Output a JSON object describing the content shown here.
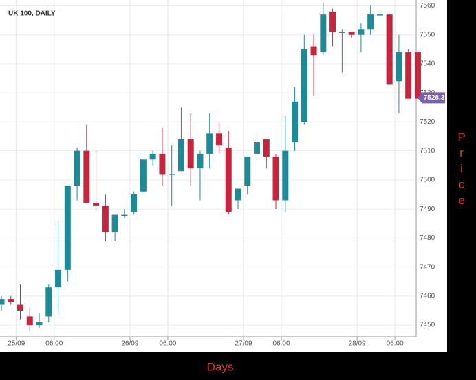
{
  "chart_data": {
    "type": "candlestick",
    "title": "UK 100, DAILY",
    "x_label": "Days",
    "y_label": "Price",
    "categories": [
      null,
      "25/09",
      null,
      null,
      null,
      "06:00",
      null,
      null,
      null,
      null,
      null,
      null,
      null,
      "26/09",
      null,
      null,
      null,
      "06:00",
      null,
      null,
      null,
      null,
      null,
      null,
      null,
      "27/09",
      null,
      null,
      null,
      "06:00",
      null,
      null,
      null,
      null,
      null,
      null,
      null,
      "28/09",
      null,
      null,
      null,
      "06:00",
      null,
      null,
      null
    ],
    "open": [
      7457,
      7459,
      7457,
      7453,
      7450,
      7453,
      7463,
      7469,
      7498,
      7510,
      7492,
      7491,
      7482,
      7488,
      7489,
      7496,
      7507,
      7509,
      7502,
      7503,
      7514,
      7504,
      7509,
      7516,
      7511,
      7493,
      7498,
      7509,
      7514,
      7508,
      7493,
      7513,
      7520,
      7546,
      7544,
      7558,
      7551,
      7551,
      7550,
      7552,
      7557,
      7557,
      7534,
      7544,
      7544
    ],
    "high": [
      7460,
      7460,
      7464,
      7456,
      7454,
      7464,
      7486,
      7498,
      7511,
      7519,
      7510,
      7495,
      7488,
      7490,
      7496,
      7507,
      7510,
      7518,
      7512,
      7525,
      7523,
      7510,
      7523,
      7520,
      7517,
      7497,
      7508,
      7516,
      7514,
      7509,
      7522,
      7532,
      7550,
      7550,
      7561,
      7559,
      7552,
      7551,
      7554,
      7560,
      7558,
      7557,
      7550,
      7545,
      7545
    ],
    "low": [
      7455,
      7457,
      7452,
      7448,
      7449,
      7451,
      7454,
      7465,
      7493,
      7492,
      7489,
      7479,
      7479,
      7487,
      7488,
      7496,
      7505,
      7498,
      7491,
      7503,
      7498,
      7493,
      7504,
      7509,
      7488,
      7490,
      7495,
      7506,
      7504,
      7490,
      7489,
      7510,
      7519,
      7529,
      7543,
      7546,
      7537,
      7549,
      7544,
      7550,
      7557,
      7533,
      7523,
      7528,
      7528
    ],
    "close": [
      7459,
      7458,
      7455,
      7450,
      7451,
      7463,
      7469,
      7498,
      7510,
      7492,
      7491,
      7482,
      7488,
      7488,
      7495,
      7507,
      7509,
      7502,
      7502,
      7514,
      7504,
      7509,
      7516,
      7512,
      7489,
      7497,
      7508,
      7513,
      7508,
      7493,
      7510,
      7527,
      7545,
      7543,
      7557,
      7551,
      7551,
      7550,
      7552,
      7557,
      7557,
      7533,
      7544,
      7528,
      7528
    ],
    "up_color": "#1f8a96",
    "down_color": "#c7243d",
    "ylim": [
      7446,
      7562
    ],
    "yticks": [
      7450,
      7460,
      7470,
      7480,
      7490,
      7500,
      7510,
      7520,
      7530,
      7540,
      7550,
      7560
    ],
    "grid": true,
    "last_price": 7528.3,
    "last_price_color": "#7a5fb0"
  }
}
